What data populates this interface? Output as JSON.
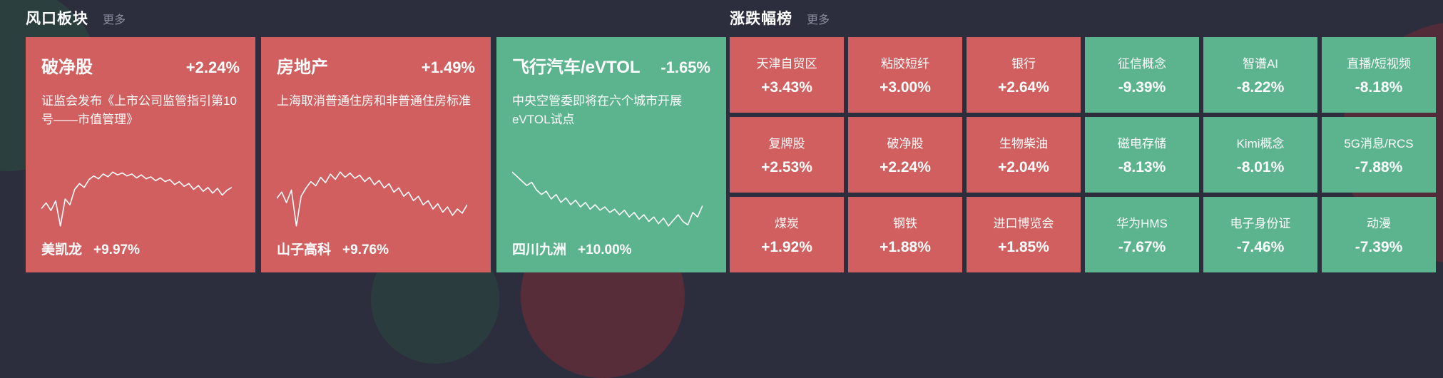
{
  "colors": {
    "red": "#d25f5f",
    "green": "#5bb48e",
    "background": "#2c2e3d",
    "muted": "#8a8ea0"
  },
  "hot_sectors": {
    "title": "风口板块",
    "more_label": "更多",
    "cards": [
      {
        "name": "破净股",
        "change": "+2.24%",
        "tone": "red",
        "desc": "证监会发布《上市公司监管指引第10号——市值管理》",
        "leader": "美凯龙",
        "leader_change": "+9.97%",
        "sparkline": [
          38,
          44,
          36,
          46,
          20,
          48,
          42,
          58,
          64,
          60,
          68,
          72,
          69,
          74,
          71,
          76,
          73,
          75,
          72,
          74,
          70,
          73,
          69,
          71,
          67,
          70,
          66,
          68,
          63,
          66,
          61,
          64,
          58,
          62,
          56,
          60,
          54,
          59,
          52,
          57,
          60
        ]
      },
      {
        "name": "房地产",
        "change": "+1.49%",
        "tone": "red",
        "desc": "上海取消普通住房和非普通住房标准",
        "leader": "山子高科",
        "leader_change": "+9.76%",
        "sparkline": [
          50,
          56,
          46,
          58,
          24,
          52,
          60,
          66,
          62,
          70,
          65,
          73,
          68,
          75,
          70,
          74,
          69,
          72,
          66,
          70,
          63,
          67,
          60,
          64,
          56,
          60,
          52,
          56,
          48,
          52,
          44,
          48,
          40,
          45,
          37,
          42,
          34,
          40,
          36,
          44
        ]
      },
      {
        "name": "飞行汽车/eVTOL",
        "change": "-1.65%",
        "tone": "green",
        "desc": "中央空管委即将在六个城市开展eVTOL试点",
        "leader": "四川九洲",
        "leader_change": "+10.00%",
        "sparkline": [
          74,
          70,
          66,
          62,
          65,
          58,
          54,
          57,
          50,
          54,
          47,
          51,
          45,
          49,
          43,
          47,
          41,
          45,
          40,
          43,
          38,
          41,
          36,
          40,
          34,
          38,
          32,
          36,
          30,
          34,
          28,
          33,
          26,
          31,
          36,
          30,
          27,
          38,
          34,
          44
        ]
      }
    ]
  },
  "rankings": {
    "title": "涨跌幅榜",
    "more_label": "更多",
    "tiles": [
      {
        "name": "天津自贸区",
        "change": "+3.43%",
        "tone": "red"
      },
      {
        "name": "粘胶短纤",
        "change": "+3.00%",
        "tone": "red"
      },
      {
        "name": "银行",
        "change": "+2.64%",
        "tone": "red"
      },
      {
        "name": "征信概念",
        "change": "-9.39%",
        "tone": "green"
      },
      {
        "name": "智谱AI",
        "change": "-8.22%",
        "tone": "green"
      },
      {
        "name": "直播/短视频",
        "change": "-8.18%",
        "tone": "green"
      },
      {
        "name": "复牌股",
        "change": "+2.53%",
        "tone": "red"
      },
      {
        "name": "破净股",
        "change": "+2.24%",
        "tone": "red"
      },
      {
        "name": "生物柴油",
        "change": "+2.04%",
        "tone": "red"
      },
      {
        "name": "磁电存储",
        "change": "-8.13%",
        "tone": "green"
      },
      {
        "name": "Kimi概念",
        "change": "-8.01%",
        "tone": "green"
      },
      {
        "name": "5G消息/RCS",
        "change": "-7.88%",
        "tone": "green"
      },
      {
        "name": "煤炭",
        "change": "+1.92%",
        "tone": "red"
      },
      {
        "name": "钢铁",
        "change": "+1.88%",
        "tone": "red"
      },
      {
        "name": "进口博览会",
        "change": "+1.85%",
        "tone": "red"
      },
      {
        "name": "华为HMS",
        "change": "-7.67%",
        "tone": "green"
      },
      {
        "name": "电子身份证",
        "change": "-7.46%",
        "tone": "green"
      },
      {
        "name": "动漫",
        "change": "-7.39%",
        "tone": "green"
      }
    ]
  }
}
